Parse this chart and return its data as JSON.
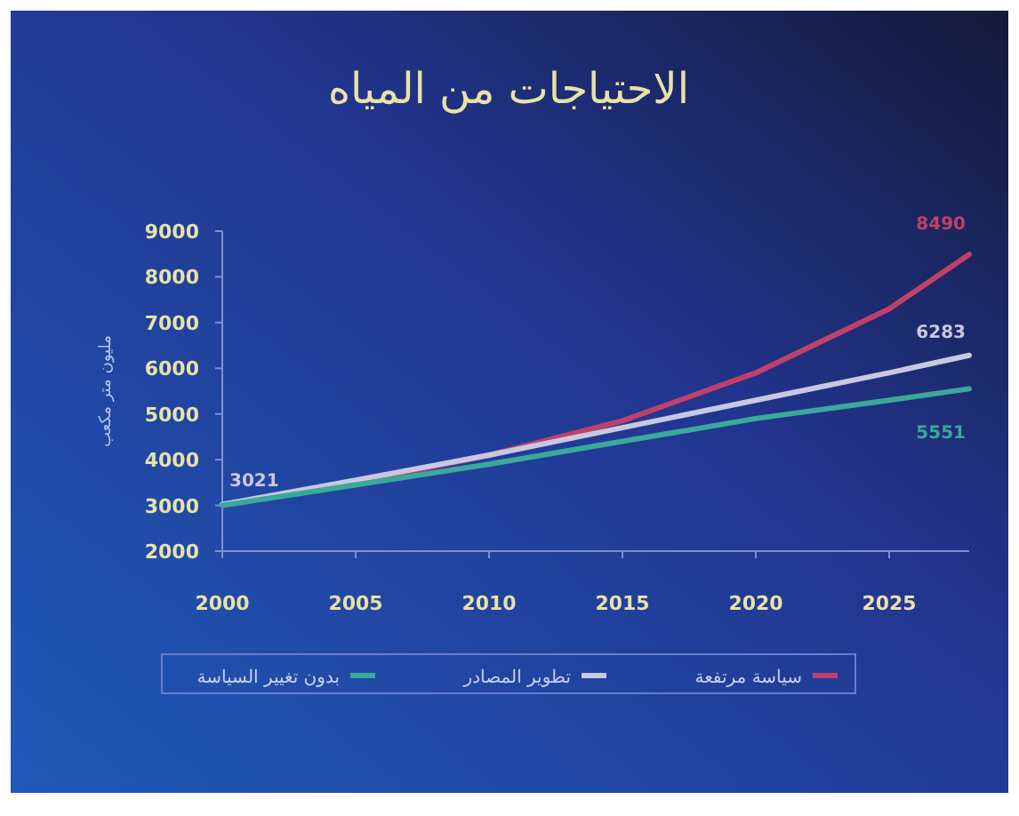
{
  "chart_data": {
    "type": "line",
    "title": "الاحتياجات من المياه",
    "ylabel": "مليون متر مكعب",
    "x": [
      2000,
      2005,
      2010,
      2015,
      2020,
      2025,
      2028
    ],
    "xlim": [
      2000,
      2028
    ],
    "xticks": [
      2000,
      2005,
      2010,
      2015,
      2020,
      2025
    ],
    "ylim": [
      2000,
      9000
    ],
    "yticks": [
      2000,
      3000,
      4000,
      5000,
      6000,
      7000,
      8000,
      9000
    ],
    "grid": false,
    "legend": "bottom",
    "marker": "none",
    "line_style": "solid",
    "series": [
      {
        "name": "سياسة مرتفعة",
        "color": "#c0406a",
        "values": [
          3000,
          3500,
          4100,
          4850,
          5900,
          7300,
          8490
        ],
        "value_labels": [
          null,
          null,
          null,
          null,
          null,
          null,
          "8490"
        ]
      },
      {
        "name": "تطوير المصادر",
        "color": "#c8c8e0",
        "values": [
          3021,
          3550,
          4100,
          4700,
          5300,
          5900,
          6283
        ],
        "value_labels": [
          "3021",
          null,
          null,
          null,
          null,
          null,
          "6283"
        ]
      },
      {
        "name": "بدون تغيير السياسة",
        "color": "#3aa89a",
        "values": [
          3000,
          3450,
          3900,
          4400,
          4900,
          5300,
          5551
        ],
        "value_labels": [
          null,
          null,
          null,
          null,
          null,
          null,
          "5551"
        ]
      }
    ]
  }
}
